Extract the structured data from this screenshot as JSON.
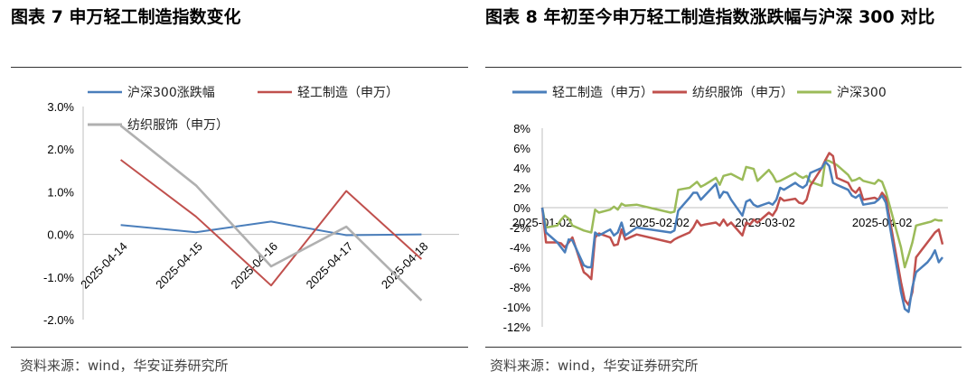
{
  "chart1": {
    "title": "图表 7 申万轻工制造指数变化",
    "source": "资料来源：wind，华安证券研究所",
    "chart_data": {
      "type": "line",
      "categories": [
        "2025-04-14",
        "2025-04-15",
        "2025-04-16",
        "2025-04-17",
        "2025-04-18"
      ],
      "series": [
        {
          "name": "沪深300涨跌幅",
          "color": "#4a7ebb",
          "values": [
            0.22,
            0.05,
            0.3,
            -0.02,
            0.0
          ]
        },
        {
          "name": "轻工制造（申万）",
          "color": "#c0504d",
          "values": [
            1.75,
            0.42,
            -1.2,
            1.02,
            -0.58
          ]
        },
        {
          "name": "纺织服饰（申万）",
          "color": "#b0b0b0",
          "values": [
            2.55,
            1.15,
            -0.75,
            0.18,
            -1.55
          ]
        }
      ],
      "yticks": [
        "3.0%",
        "2.0%",
        "1.0%",
        "0.0%",
        "-1.0%",
        "-2.0%"
      ],
      "ylim": [
        -2,
        3
      ],
      "grid": false,
      "legend": "top"
    }
  },
  "chart2": {
    "title": "图表 8 年初至今申万轻工制造指数涨跌幅与沪深 300 对比",
    "source": "资料来源：wind，华安证券研究所",
    "chart_data": {
      "type": "line",
      "x_tick_labels": [
        "2025-01-02",
        "2025-02-02",
        "2025-03-02",
        "2025-04-02"
      ],
      "x_start": "2025-01-02",
      "x_end": "2025-04-18",
      "yticks": [
        "8%",
        "6%",
        "4%",
        "2%",
        "0%",
        "-2%",
        "-4%",
        "-6%",
        "-8%",
        "-10%",
        "-12%"
      ],
      "ylim": [
        -12,
        8
      ],
      "grid": false,
      "legend": "top",
      "series": [
        {
          "name": "轻工制造（申万）",
          "color": "#4a7ebb",
          "points": [
            [
              "2025-01-02",
              0
            ],
            [
              "2025-01-03",
              -2.5
            ],
            [
              "2025-01-06",
              -3.5
            ],
            [
              "2025-01-07",
              -4
            ],
            [
              "2025-01-08",
              -4.5
            ],
            [
              "2025-01-09",
              -3.2
            ],
            [
              "2025-01-10",
              -3.3
            ],
            [
              "2025-01-13",
              -5.8
            ],
            [
              "2025-01-14",
              -6
            ],
            [
              "2025-01-15",
              -6
            ],
            [
              "2025-01-16",
              -2.5
            ],
            [
              "2025-01-17",
              -2.8
            ],
            [
              "2025-01-20",
              -2.2
            ],
            [
              "2025-01-21",
              -2.8
            ],
            [
              "2025-01-22",
              -2.5
            ],
            [
              "2025-01-23",
              -1.5
            ],
            [
              "2025-01-24",
              -2.8
            ],
            [
              "2025-01-27",
              -2
            ],
            [
              "2025-02-05",
              -2.5
            ],
            [
              "2025-02-06",
              -2.3
            ],
            [
              "2025-02-07",
              -0.3
            ],
            [
              "2025-02-10",
              1
            ],
            [
              "2025-02-11",
              1.5
            ],
            [
              "2025-02-12",
              1.5
            ],
            [
              "2025-02-13",
              0.8
            ],
            [
              "2025-02-14",
              1.2
            ],
            [
              "2025-02-17",
              2.4
            ],
            [
              "2025-02-18",
              1
            ],
            [
              "2025-02-19",
              1.6
            ],
            [
              "2025-02-20",
              1.5
            ],
            [
              "2025-02-21",
              0.8
            ],
            [
              "2025-02-24",
              -0.8
            ],
            [
              "2025-02-25",
              0.6
            ],
            [
              "2025-02-26",
              0.8
            ],
            [
              "2025-02-27",
              0.3
            ],
            [
              "2025-02-28",
              0.1
            ],
            [
              "2025-03-03",
              0.5
            ],
            [
              "2025-03-04",
              0.3
            ],
            [
              "2025-03-05",
              0.8
            ],
            [
              "2025-03-06",
              2
            ],
            [
              "2025-03-07",
              1.8
            ],
            [
              "2025-03-10",
              2.5
            ],
            [
              "2025-03-11",
              2.2
            ],
            [
              "2025-03-12",
              2
            ],
            [
              "2025-03-13",
              2.3
            ],
            [
              "2025-03-14",
              3.5
            ],
            [
              "2025-03-17",
              4
            ],
            [
              "2025-03-18",
              4.6
            ],
            [
              "2025-03-19",
              4.2
            ],
            [
              "2025-03-20",
              2.5
            ],
            [
              "2025-03-21",
              2.3
            ],
            [
              "2025-03-24",
              1.8
            ],
            [
              "2025-03-25",
              1.2
            ],
            [
              "2025-03-26",
              1
            ],
            [
              "2025-03-27",
              1.3
            ],
            [
              "2025-03-28",
              0.3
            ],
            [
              "2025-03-31",
              0.5
            ],
            [
              "2025-04-01",
              0.8
            ],
            [
              "2025-04-02",
              1.2
            ],
            [
              "2025-04-03",
              0.5
            ],
            [
              "2025-04-07",
              -8.5
            ],
            [
              "2025-04-08",
              -10.2
            ],
            [
              "2025-04-09",
              -10.5
            ],
            [
              "2025-04-10",
              -8
            ],
            [
              "2025-04-11",
              -6.5
            ],
            [
              "2025-04-14",
              -5.5
            ],
            [
              "2025-04-15",
              -5
            ],
            [
              "2025-04-16",
              -4.3
            ],
            [
              "2025-04-17",
              -5.5
            ],
            [
              "2025-04-18",
              -5
            ]
          ]
        },
        {
          "name": "纺织服饰（申万）",
          "color": "#c0504d",
          "points": [
            [
              "2025-01-02",
              0
            ],
            [
              "2025-01-03",
              -3.5
            ],
            [
              "2025-01-06",
              -3.5
            ],
            [
              "2025-01-07",
              -3.6
            ],
            [
              "2025-01-08",
              -4
            ],
            [
              "2025-01-09",
              -3.5
            ],
            [
              "2025-01-10",
              -3
            ],
            [
              "2025-01-13",
              -6.5
            ],
            [
              "2025-01-14",
              -6.8
            ],
            [
              "2025-01-15",
              -7.2
            ],
            [
              "2025-01-16",
              -3
            ],
            [
              "2025-01-17",
              -2.6
            ],
            [
              "2025-01-20",
              -3
            ],
            [
              "2025-01-21",
              -3.8
            ],
            [
              "2025-01-22",
              -3.7
            ],
            [
              "2025-01-23",
              -2.2
            ],
            [
              "2025-01-24",
              -3.2
            ],
            [
              "2025-01-27",
              -2.7
            ],
            [
              "2025-02-05",
              -3.5
            ],
            [
              "2025-02-06",
              -3.2
            ],
            [
              "2025-02-07",
              -3
            ],
            [
              "2025-02-10",
              -2.5
            ],
            [
              "2025-02-11",
              -2
            ],
            [
              "2025-02-12",
              -1.3
            ],
            [
              "2025-02-13",
              -1.8
            ],
            [
              "2025-02-14",
              -1.7
            ],
            [
              "2025-02-17",
              -1.5
            ],
            [
              "2025-02-18",
              -1.8
            ],
            [
              "2025-02-19",
              -1.2
            ],
            [
              "2025-02-20",
              -1.8
            ],
            [
              "2025-02-21",
              -1.5
            ],
            [
              "2025-02-24",
              -2.8
            ],
            [
              "2025-02-25",
              -1.5
            ],
            [
              "2025-02-26",
              -1.7
            ],
            [
              "2025-02-27",
              -1.2
            ],
            [
              "2025-02-28",
              -1.5
            ],
            [
              "2025-03-03",
              -0.5
            ],
            [
              "2025-03-04",
              -0.8
            ],
            [
              "2025-03-05",
              -0.2
            ],
            [
              "2025-03-06",
              1
            ],
            [
              "2025-03-07",
              0.7
            ],
            [
              "2025-03-10",
              0.9
            ],
            [
              "2025-03-11",
              0.5
            ],
            [
              "2025-03-12",
              0.4
            ],
            [
              "2025-03-13",
              0.8
            ],
            [
              "2025-03-14",
              2.2
            ],
            [
              "2025-03-17",
              4
            ],
            [
              "2025-03-18",
              4.8
            ],
            [
              "2025-03-19",
              5.5
            ],
            [
              "2025-03-20",
              5.2
            ],
            [
              "2025-03-21",
              3
            ],
            [
              "2025-03-24",
              2.5
            ],
            [
              "2025-03-25",
              1.8
            ],
            [
              "2025-03-26",
              1.5
            ],
            [
              "2025-03-27",
              2
            ],
            [
              "2025-03-28",
              0.8
            ],
            [
              "2025-03-31",
              1
            ],
            [
              "2025-04-01",
              0.8
            ],
            [
              "2025-04-02",
              1.5
            ],
            [
              "2025-04-03",
              1
            ],
            [
              "2025-04-07",
              -7.5
            ],
            [
              "2025-04-08",
              -9.3
            ],
            [
              "2025-04-09",
              -9.8
            ],
            [
              "2025-04-10",
              -8.5
            ],
            [
              "2025-04-11",
              -5
            ],
            [
              "2025-04-14",
              -3.5
            ],
            [
              "2025-04-15",
              -3
            ],
            [
              "2025-04-16",
              -2.5
            ],
            [
              "2025-04-17",
              -2.2
            ],
            [
              "2025-04-18",
              -3.7
            ]
          ]
        },
        {
          "name": "沪深300",
          "color": "#9bbb59",
          "points": [
            [
              "2025-01-02",
              0
            ],
            [
              "2025-01-03",
              -2
            ],
            [
              "2025-01-06",
              -1.8
            ],
            [
              "2025-01-07",
              -1.2
            ],
            [
              "2025-01-08",
              -0.8
            ],
            [
              "2025-01-09",
              -1.1
            ],
            [
              "2025-01-10",
              -1.8
            ],
            [
              "2025-01-13",
              -2.3
            ],
            [
              "2025-01-14",
              -2.4
            ],
            [
              "2025-01-15",
              -2.5
            ],
            [
              "2025-01-16",
              -0.2
            ],
            [
              "2025-01-17",
              -0.5
            ],
            [
              "2025-01-20",
              -0.2
            ],
            [
              "2025-01-21",
              0.1
            ],
            [
              "2025-01-22",
              -0.2
            ],
            [
              "2025-01-23",
              0.4
            ],
            [
              "2025-01-24",
              0.2
            ],
            [
              "2025-01-27",
              0.3
            ],
            [
              "2025-02-05",
              -0.5
            ],
            [
              "2025-02-06",
              -0.4
            ],
            [
              "2025-02-07",
              1.8
            ],
            [
              "2025-02-10",
              2
            ],
            [
              "2025-02-11",
              2.3
            ],
            [
              "2025-02-12",
              2.6
            ],
            [
              "2025-02-13",
              2.1
            ],
            [
              "2025-02-14",
              2.3
            ],
            [
              "2025-02-17",
              3
            ],
            [
              "2025-02-18",
              2.3
            ],
            [
              "2025-02-19",
              3.2
            ],
            [
              "2025-02-20",
              3.3
            ],
            [
              "2025-02-21",
              3.4
            ],
            [
              "2025-02-24",
              2.8
            ],
            [
              "2025-02-25",
              4.1
            ],
            [
              "2025-02-26",
              4
            ],
            [
              "2025-02-27",
              3.9
            ],
            [
              "2025-02-28",
              2.7
            ],
            [
              "2025-03-03",
              3.8
            ],
            [
              "2025-03-04",
              3.3
            ],
            [
              "2025-03-05",
              2.6
            ],
            [
              "2025-03-06",
              2.7
            ],
            [
              "2025-03-07",
              2.9
            ],
            [
              "2025-03-10",
              3.5
            ],
            [
              "2025-03-11",
              3.2
            ],
            [
              "2025-03-12",
              3
            ],
            [
              "2025-03-13",
              3.2
            ],
            [
              "2025-03-14",
              2.6
            ],
            [
              "2025-03-17",
              2.2
            ],
            [
              "2025-03-18",
              4.8
            ],
            [
              "2025-03-19",
              4.7
            ],
            [
              "2025-03-20",
              4.5
            ],
            [
              "2025-03-21",
              4.3
            ],
            [
              "2025-03-24",
              3.3
            ],
            [
              "2025-03-25",
              2.7
            ],
            [
              "2025-03-26",
              2.8
            ],
            [
              "2025-03-27",
              3
            ],
            [
              "2025-03-28",
              2.7
            ],
            [
              "2025-03-31",
              2.4
            ],
            [
              "2025-04-01",
              2.8
            ],
            [
              "2025-04-02",
              2.6
            ],
            [
              "2025-04-03",
              1.6
            ],
            [
              "2025-04-07",
              -4
            ],
            [
              "2025-04-08",
              -6
            ],
            [
              "2025-04-09",
              -4.8
            ],
            [
              "2025-04-10",
              -3.5
            ],
            [
              "2025-04-11",
              -1.8
            ],
            [
              "2025-04-14",
              -1.5
            ],
            [
              "2025-04-15",
              -1.4
            ],
            [
              "2025-04-16",
              -1.2
            ],
            [
              "2025-04-17",
              -1.3
            ],
            [
              "2025-04-18",
              -1.3
            ]
          ]
        }
      ]
    }
  }
}
